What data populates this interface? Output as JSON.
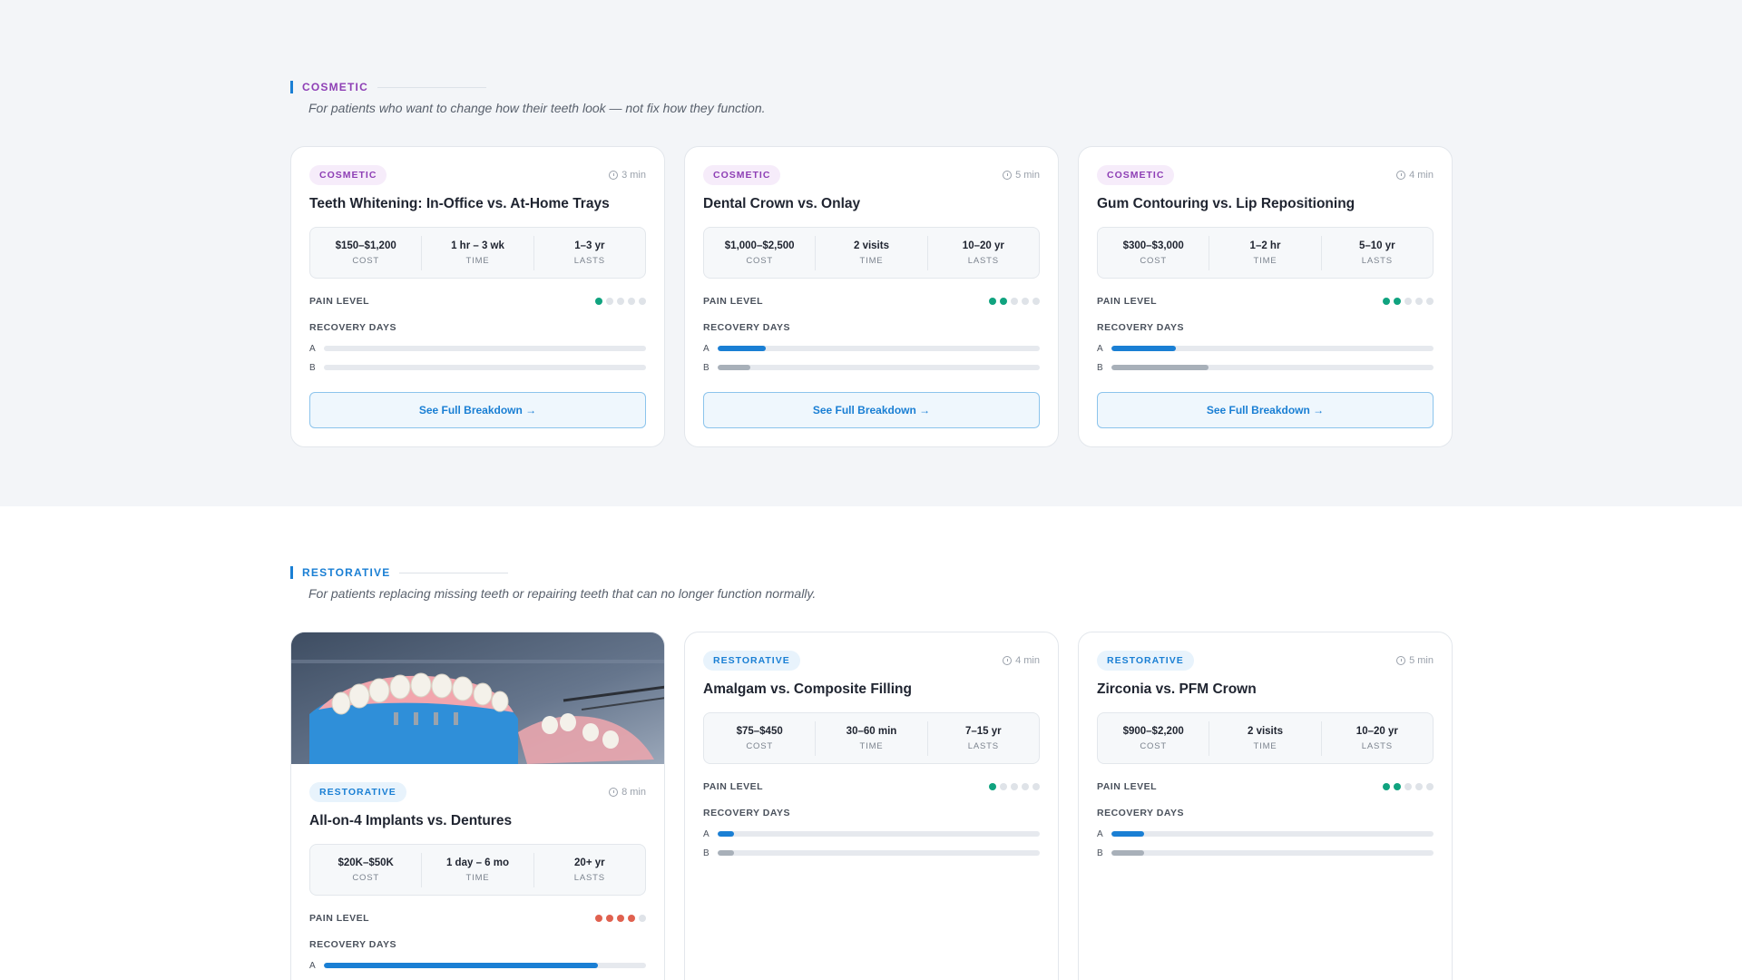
{
  "sections": [
    {
      "label": "COSMETIC",
      "subtitle": "For patients who want to change how their teeth look — not fix how they function.",
      "color": "#8e3fb5",
      "cards": [
        {
          "badge": "COSMETIC",
          "read_time": "3 min",
          "title": "Teeth Whitening: In-Office vs. At-Home Trays",
          "stats": [
            {
              "value": "$150–$1,200",
              "key": "COST"
            },
            {
              "value": "1 hr – 3 wk",
              "key": "TIME"
            },
            {
              "value": "1–3 yr",
              "key": "LASTS"
            }
          ],
          "pain_label": "PAIN LEVEL",
          "pain_level": 1,
          "recovery_label": "RECOVERY DAYS",
          "recovery": [
            {
              "label": "A",
              "fraction": 0
            },
            {
              "label": "B",
              "fraction": 0
            }
          ],
          "cta": "See Full Breakdown →"
        },
        {
          "badge": "COSMETIC",
          "read_time": "5 min",
          "title": "Dental Crown vs. Onlay",
          "stats": [
            {
              "value": "$1,000–$2,500",
              "key": "COST"
            },
            {
              "value": "2 visits",
              "key": "TIME"
            },
            {
              "value": "10–20 yr",
              "key": "LASTS"
            }
          ],
          "pain_label": "PAIN LEVEL",
          "pain_level": 2,
          "recovery_label": "RECOVERY DAYS",
          "recovery": [
            {
              "label": "A",
              "fraction": 0.15
            },
            {
              "label": "B",
              "fraction": 0.1
            }
          ],
          "cta": "See Full Breakdown →"
        },
        {
          "badge": "COSMETIC",
          "read_time": "4 min",
          "title": "Gum Contouring vs. Lip Repositioning",
          "stats": [
            {
              "value": "$300–$3,000",
              "key": "COST"
            },
            {
              "value": "1–2 hr",
              "key": "TIME"
            },
            {
              "value": "5–10 yr",
              "key": "LASTS"
            }
          ],
          "pain_label": "PAIN LEVEL",
          "pain_level": 2,
          "recovery_label": "RECOVERY DAYS",
          "recovery": [
            {
              "label": "A",
              "fraction": 0.2
            },
            {
              "label": "B",
              "fraction": 0.3
            }
          ],
          "cta": "See Full Breakdown →"
        }
      ]
    },
    {
      "label": "RESTORATIVE",
      "subtitle": "For patients replacing missing teeth or repairing teeth that can no longer function normally.",
      "color": "#1a7fd4",
      "cards": [
        {
          "has_photo": true,
          "photo_icon": "dental-implant-model-photo",
          "badge": "RESTORATIVE",
          "read_time": "8 min",
          "title": "All-on-4 Implants vs. Dentures",
          "stats": [
            {
              "value": "$20K–$50K",
              "key": "COST"
            },
            {
              "value": "1 day – 6 mo",
              "key": "TIME"
            },
            {
              "value": "20+ yr",
              "key": "LASTS"
            }
          ],
          "pain_label": "PAIN LEVEL",
          "pain_level": 4,
          "pain_color": "red",
          "recovery_label": "RECOVERY DAYS",
          "recovery": [
            {
              "label": "A",
              "fraction": 0.85
            }
          ]
        },
        {
          "badge": "RESTORATIVE",
          "read_time": "4 min",
          "title": "Amalgam vs. Composite Filling",
          "stats": [
            {
              "value": "$75–$450",
              "key": "COST"
            },
            {
              "value": "30–60 min",
              "key": "TIME"
            },
            {
              "value": "7–15 yr",
              "key": "LASTS"
            }
          ],
          "pain_label": "PAIN LEVEL",
          "pain_level": 1,
          "recovery_label": "RECOVERY DAYS",
          "recovery": [
            {
              "label": "A",
              "fraction": 0.05
            },
            {
              "label": "B",
              "fraction": 0.05
            }
          ]
        },
        {
          "badge": "RESTORATIVE",
          "read_time": "5 min",
          "title": "Zirconia vs. PFM Crown",
          "stats": [
            {
              "value": "$900–$2,200",
              "key": "COST"
            },
            {
              "value": "2 visits",
              "key": "TIME"
            },
            {
              "value": "10–20 yr",
              "key": "LASTS"
            }
          ],
          "pain_label": "PAIN LEVEL",
          "pain_level": 2,
          "recovery_label": "RECOVERY DAYS",
          "recovery": [
            {
              "label": "A",
              "fraction": 0.1
            },
            {
              "label": "B",
              "fraction": 0.1
            }
          ]
        }
      ]
    }
  ]
}
